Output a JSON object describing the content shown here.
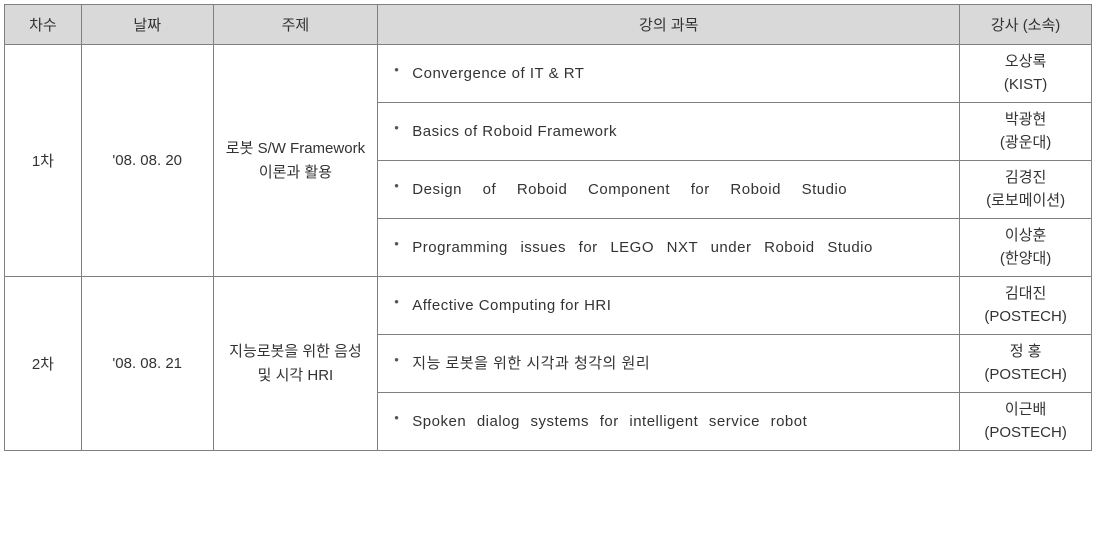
{
  "headers": {
    "session": "차수",
    "date": "날짜",
    "topic": "주제",
    "course": "강의 과목",
    "instructor": "강사 (소속)"
  },
  "sessions": [
    {
      "session": "1차",
      "date": "'08. 08. 20",
      "topic": "로봇 S/W Framework 이론과 활용",
      "courses": [
        {
          "title": "Convergence of IT & RT",
          "instructor_name": "오상록",
          "instructor_org": "(KIST)",
          "spread": ""
        },
        {
          "title": "Basics of Roboid Framework",
          "instructor_name": "박광현",
          "instructor_org": "(광운대)",
          "spread": ""
        },
        {
          "title": "Design of Roboid Component for Roboid Studio",
          "instructor_name": "김경진",
          "instructor_org": "(로보메이션)",
          "spread": "spread2"
        },
        {
          "title": "Programming issues for LEGO NXT under Roboid Studio",
          "instructor_name": "이상훈",
          "instructor_org": "(한양대)",
          "spread": "spread1"
        }
      ]
    },
    {
      "session": "2차",
      "date": "'08. 08. 21",
      "topic": "지능로봇을 위한 음성 및 시각 HRI",
      "courses": [
        {
          "title": "Affective Computing for HRI",
          "instructor_name": "김대진",
          "instructor_org": "(POSTECH)",
          "spread": ""
        },
        {
          "title": "지능 로봇을 위한 시각과 청각의 원리",
          "instructor_name": "정   홍",
          "instructor_org": "(POSTECH)",
          "spread": ""
        },
        {
          "title": "Spoken dialog systems for intelligent service robot",
          "instructor_name": "이근배",
          "instructor_org": "(POSTECH)",
          "spread": "spread3"
        }
      ]
    }
  ]
}
